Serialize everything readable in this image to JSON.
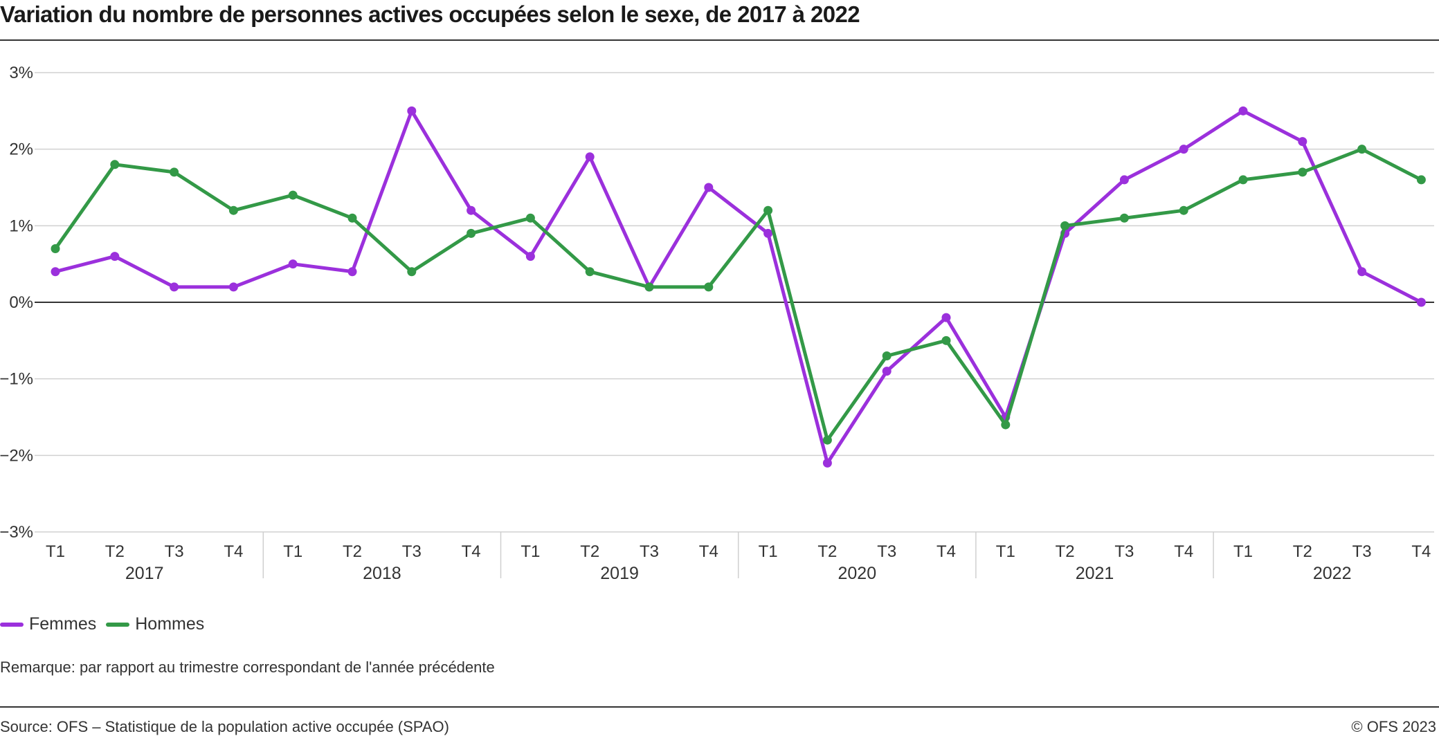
{
  "header": {
    "title": "Variation du nombre de personnes actives occupées selon le sexe, de 2017 à 2022"
  },
  "chart_data": {
    "type": "line",
    "title": "Variation du nombre de personnes actives occupées selon le sexe, de 2017 à 2022",
    "xlabel": "",
    "ylabel": "",
    "ylim": [
      -3,
      3
    ],
    "y_ticks": [
      "3%",
      "2%",
      "1%",
      "0%",
      "−1%",
      "−2%",
      "−3%"
    ],
    "y_tick_values": [
      3,
      2,
      1,
      0,
      -1,
      -2,
      -3
    ],
    "grid": true,
    "legend_position": "bottom-left",
    "years": [
      "2017",
      "2018",
      "2019",
      "2020",
      "2021",
      "2022"
    ],
    "quarters": [
      "T1",
      "T2",
      "T3",
      "T4"
    ],
    "categories": [
      "2017 T1",
      "2017 T2",
      "2017 T3",
      "2017 T4",
      "2018 T1",
      "2018 T2",
      "2018 T3",
      "2018 T4",
      "2019 T1",
      "2019 T2",
      "2019 T3",
      "2019 T4",
      "2020 T1",
      "2020 T2",
      "2020 T3",
      "2020 T4",
      "2021 T1",
      "2021 T2",
      "2021 T3",
      "2021 T4",
      "2022 T1",
      "2022 T2",
      "2022 T3",
      "2022 T4"
    ],
    "series": [
      {
        "name": "Femmes",
        "color": "#9b30dc",
        "values": [
          0.4,
          0.6,
          0.2,
          0.2,
          0.5,
          0.4,
          2.5,
          1.2,
          0.6,
          1.9,
          0.2,
          1.5,
          0.9,
          -2.1,
          -0.9,
          -0.2,
          -1.5,
          0.9,
          1.6,
          2.0,
          2.5,
          2.1,
          0.4,
          0.0
        ]
      },
      {
        "name": "Hommes",
        "color": "#339947",
        "values": [
          0.7,
          1.8,
          1.7,
          1.2,
          1.4,
          1.1,
          0.4,
          0.9,
          1.1,
          0.4,
          0.2,
          0.2,
          1.2,
          -1.8,
          -0.7,
          -0.5,
          -1.6,
          1.0,
          1.1,
          1.2,
          1.6,
          1.7,
          2.0,
          1.6
        ]
      }
    ]
  },
  "footer": {
    "note": "Remarque: par rapport au trimestre correspondant de l'année précédente",
    "source": "Source: OFS – Statistique de la population active occupée (SPAO)",
    "copyright": "© OFS 2023"
  }
}
